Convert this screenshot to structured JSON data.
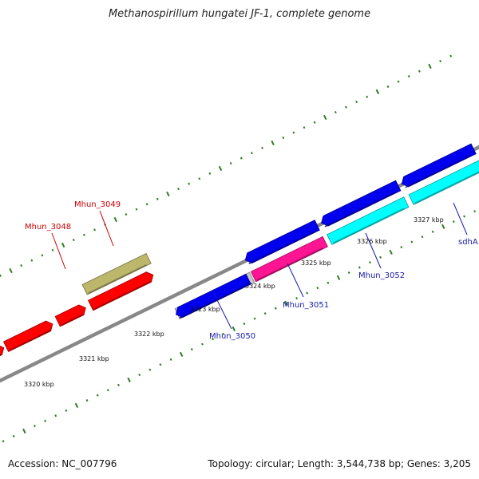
{
  "title": "Methanospirillum hungatei JF-1, complete genome",
  "footer": {
    "accession": "Accession: NC_007796",
    "summary": "Topology: circular; Length: 3,544,738 bp; Genes: 3,205"
  },
  "colors": {
    "backbone": "#888888",
    "ticks": "#2e7d1f",
    "forward_label": "#cc0000",
    "reverse_label": "#1a1aaa"
  },
  "scale": {
    "unit": "kbp",
    "labels": [
      "3320 kbp",
      "3321 kbp",
      "3322 kbp",
      "3323 kbp",
      "3324 kbp",
      "3325 kbp",
      "3326 kbp",
      "3327 kbp"
    ]
  },
  "genes": [
    {
      "name": "",
      "color": "#ff0000",
      "label_color": "#cc0000"
    },
    {
      "name": "",
      "color": "#ff0000",
      "label_color": "#cc0000"
    },
    {
      "name": "Mhun_3048",
      "color": "#ff0000",
      "label_color": "#cc0000"
    },
    {
      "name": "",
      "color": "#ff0000",
      "label_color": "#cc0000"
    },
    {
      "name": "Mhun_3049",
      "color": "#bdb76b",
      "label_color": "#cc0000"
    },
    {
      "name": "Mhun_3050",
      "color": "#c8c8c8",
      "label_color": "#1a1aaa"
    },
    {
      "name": "",
      "color": "#0000ee",
      "label_color": "#1a1aaa"
    },
    {
      "name": "Mhun_3051",
      "color": "#ff1493",
      "label_color": "#1a1aaa"
    },
    {
      "name": "",
      "color": "#0000ee",
      "label_color": "#1a1aaa"
    },
    {
      "name": "Mhun_3052",
      "color": "#00ffff",
      "label_color": "#1a1aaa"
    },
    {
      "name": "",
      "color": "#0000ee",
      "label_color": "#1a1aaa"
    },
    {
      "name": "",
      "color": "#0000ee",
      "label_color": "#1a1aaa"
    },
    {
      "name": "sdhA",
      "color": "#00ffff",
      "label_color": "#1a1aaa"
    }
  ]
}
